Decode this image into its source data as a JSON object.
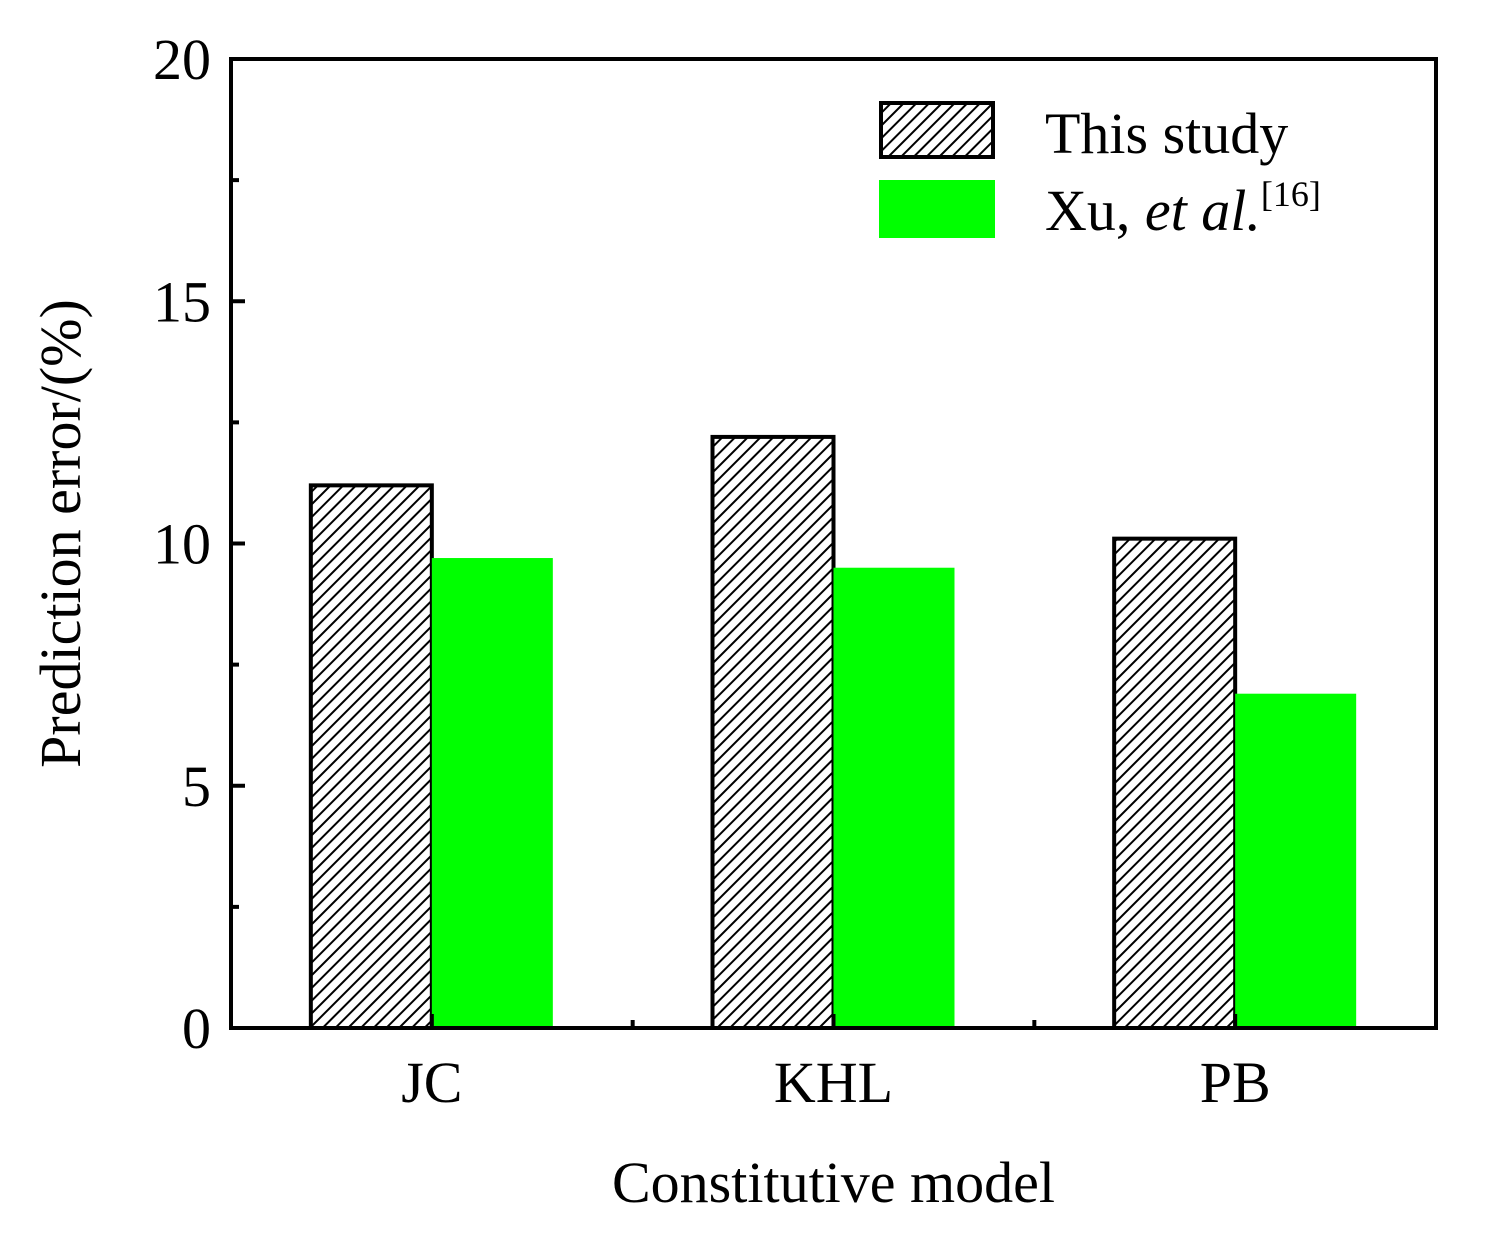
{
  "chart_data": {
    "type": "bar",
    "title": "",
    "xlabel": "Constitutive model",
    "ylabel": "Prediction error/(%)",
    "categories": [
      "JC",
      "KHL",
      "PB"
    ],
    "ylim": [
      0,
      20
    ],
    "yticks": [
      "0",
      "5",
      "10",
      "15",
      "20"
    ],
    "ytick_values": [
      0,
      5,
      10,
      15,
      20
    ],
    "minor_ytick_values": [
      2.5,
      7.5,
      12.5,
      17.5
    ],
    "grid": false,
    "legend_position": "top-right",
    "series": [
      {
        "name": "This study",
        "values": [
          11.2,
          12.2,
          10.1
        ],
        "color": "#ffffff",
        "pattern": "diagonal-hatch"
      },
      {
        "name": "Xu, et al.[16]",
        "name_parts": {
          "plain": "Xu, ",
          "italic": "et al.",
          "superscript": "[16]"
        },
        "values": [
          9.7,
          9.5,
          6.9
        ],
        "color": "#00ff00"
      }
    ]
  }
}
